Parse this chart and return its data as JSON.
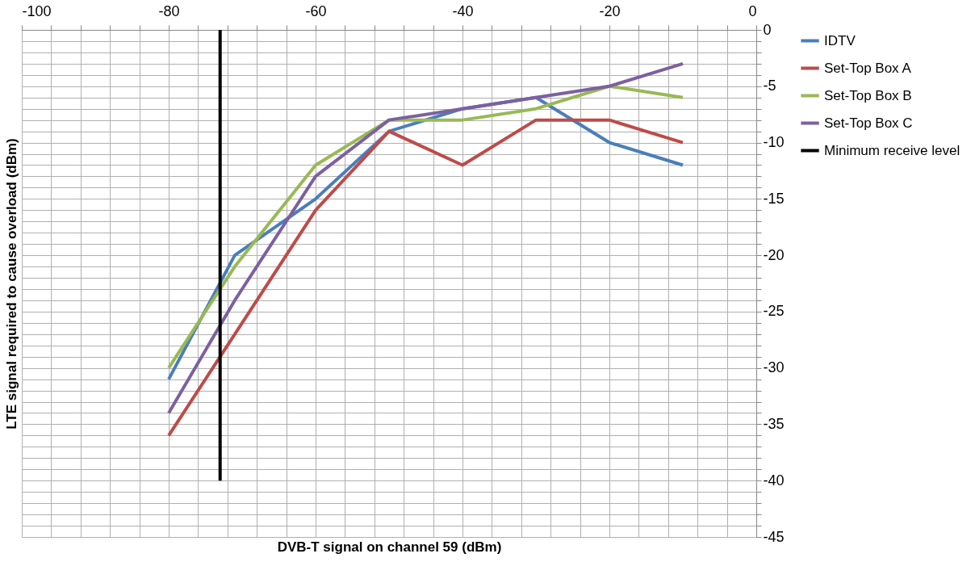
{
  "chart_data": {
    "type": "line",
    "xlabel": "DVB-T signal on channel 59 (dBm)",
    "ylabel": "LTE signal required to cause overload (dBm)",
    "x": [
      -80,
      -71,
      -60,
      -50,
      -40,
      -30,
      -20,
      -10
    ],
    "series": [
      {
        "name": "IDTV",
        "color": "#4a7ebb",
        "values": [
          -31,
          -20,
          -15,
          -9,
          -7,
          -6,
          -10,
          -12
        ]
      },
      {
        "name": "Set-Top Box A",
        "color": "#be4b48",
        "values": [
          -36,
          -27,
          -16,
          -9,
          -12,
          -8,
          -8,
          -10
        ]
      },
      {
        "name": "Set-Top Box B",
        "color": "#98b954",
        "values": [
          -30,
          -21,
          -12,
          -8,
          -8,
          -7,
          -5,
          -6
        ]
      },
      {
        "name": "Set-Top Box C",
        "color": "#7d60a0",
        "values": [
          -34,
          -24,
          -13,
          -8,
          -7,
          -6,
          -5,
          -3
        ]
      },
      {
        "name": "Minimum receive level",
        "color": "#000000",
        "type": "line",
        "x": [
          -73,
          -73
        ],
        "values": [
          0,
          -40
        ]
      }
    ],
    "xlim": [
      -100,
      0
    ],
    "xticks": [
      -100,
      {
        "value": -96,
        "label": null
      },
      {
        "value": -92,
        "label": null
      },
      {
        "value": -88,
        "label": null
      },
      {
        "value": -84,
        "label": null
      },
      -80,
      {
        "value": -76,
        "label": null
      },
      {
        "value": -72,
        "label": null
      },
      {
        "value": -68,
        "label": null
      },
      {
        "value": -64,
        "label": null
      },
      -60,
      {
        "value": -56,
        "label": null
      },
      {
        "value": -52,
        "label": null
      },
      {
        "value": -48,
        "label": null
      },
      {
        "value": -44,
        "label": null
      },
      -40,
      {
        "value": -36,
        "label": null
      },
      {
        "value": -32,
        "label": null
      },
      {
        "value": -28,
        "label": null
      },
      {
        "value": -24,
        "label": null
      },
      -20,
      {
        "value": -16,
        "label": null
      },
      {
        "value": -12,
        "label": null
      },
      {
        "value": -8,
        "label": null
      },
      {
        "value": -4,
        "label": null
      },
      0
    ],
    "ylim": [
      -45,
      0
    ],
    "yticks": [
      -45,
      {
        "value": -44,
        "label": null
      },
      {
        "value": -43,
        "label": null
      },
      {
        "value": -42,
        "label": null
      },
      {
        "value": -41,
        "label": null
      },
      -40,
      {
        "value": -39,
        "label": null
      },
      {
        "value": -38,
        "label": null
      },
      {
        "value": -37,
        "label": null
      },
      {
        "value": -36,
        "label": null
      },
      -35,
      {
        "value": -34,
        "label": null
      },
      {
        "value": -33,
        "label": null
      },
      {
        "value": -32,
        "label": null
      },
      {
        "value": -31,
        "label": null
      },
      -30,
      {
        "value": -29,
        "label": null
      },
      {
        "value": -28,
        "label": null
      },
      {
        "value": -27,
        "label": null
      },
      {
        "value": -26,
        "label": null
      },
      -25,
      {
        "value": -24,
        "label": null
      },
      {
        "value": -23,
        "label": null
      },
      {
        "value": -22,
        "label": null
      },
      {
        "value": -21,
        "label": null
      },
      -20,
      {
        "value": -19,
        "label": null
      },
      {
        "value": -18,
        "label": null
      },
      {
        "value": -17,
        "label": null
      },
      {
        "value": -16,
        "label": null
      },
      -15,
      {
        "value": -14,
        "label": null
      },
      {
        "value": -13,
        "label": null
      },
      {
        "value": -12,
        "label": null
      },
      {
        "value": -11,
        "label": null
      },
      -10,
      {
        "value": -9,
        "label": null
      },
      {
        "value": -8,
        "label": null
      },
      {
        "value": -7,
        "label": null
      },
      {
        "value": -6,
        "label": null
      },
      -5,
      {
        "value": -4,
        "label": null
      },
      {
        "value": -3,
        "label": null
      },
      {
        "value": -2,
        "label": null
      },
      {
        "value": -1,
        "label": null
      },
      0
    ],
    "grid": true,
    "legend": "right",
    "marker": "none",
    "line_style": "solid"
  }
}
